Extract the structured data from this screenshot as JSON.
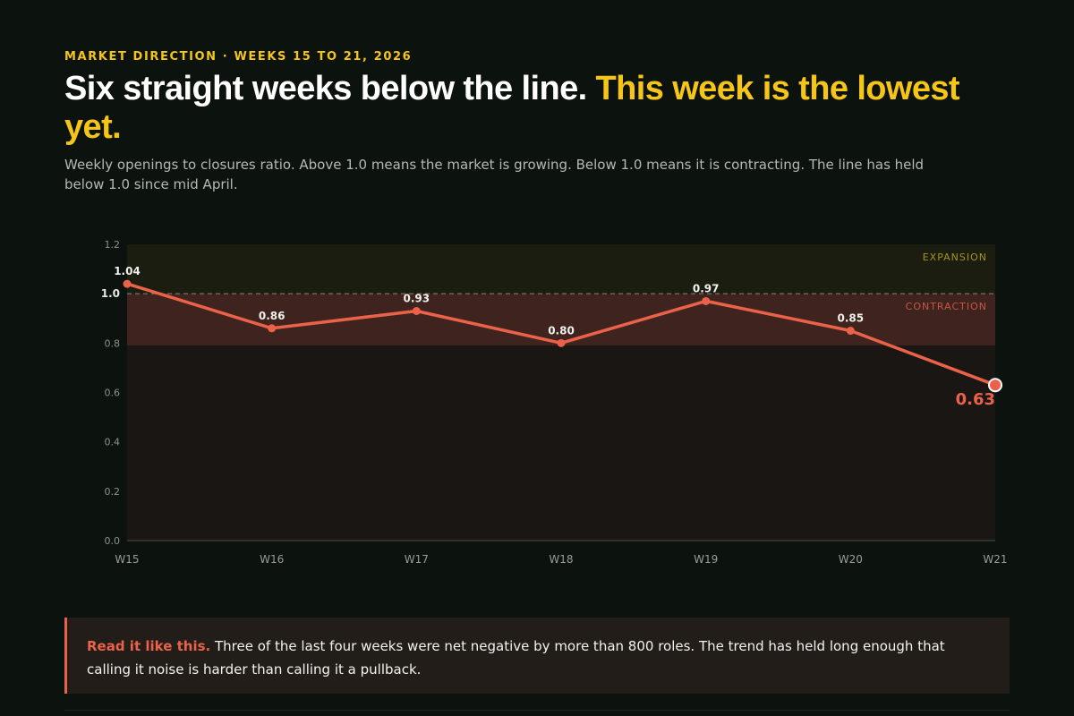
{
  "header": {
    "eyebrow": "MARKET DIRECTION · WEEKS 15 TO 21, 2026",
    "headline_main": "Six straight weeks below the line.",
    "headline_accent": "This week is the lowest yet.",
    "subtitle": "Weekly openings to closures ratio. Above 1.0 means the market is growing. Below 1.0 means it is contracting. The line has held below 1.0 since mid April."
  },
  "colors": {
    "background": "#0c120e",
    "accent_yellow": "#f5c518",
    "line_coral": "#ea6249",
    "expansion_band": "#1a1d10",
    "contraction_band": "#3e231e",
    "lower_band": "#191614"
  },
  "chart_data": {
    "type": "line",
    "categories": [
      "W15",
      "W16",
      "W17",
      "W18",
      "W19",
      "W20",
      "W21"
    ],
    "series": [
      {
        "values": [
          1.04,
          0.86,
          0.93,
          0.8,
          0.97,
          0.85,
          0.63
        ]
      }
    ],
    "data_labels": [
      "1.04",
      "0.86",
      "0.93",
      "0.80",
      "0.97",
      "0.85",
      "0.63"
    ],
    "highlight_index": 6,
    "ylim": [
      0,
      1.2
    ],
    "yticks": [
      "0.0",
      "0.2",
      "0.4",
      "0.6",
      "0.8",
      "1.0",
      "1.2"
    ],
    "ytick_values": [
      0,
      0.2,
      0.4,
      0.6,
      0.8,
      1.0,
      1.2
    ],
    "reference_line": 1.0,
    "zones": {
      "upper": "EXPANSION",
      "lower": "CONTRACTION"
    },
    "xlabel": "",
    "ylabel": "",
    "grid": false
  },
  "callout": {
    "lead": "Read it like this.",
    "text": "Three of the last four weeks were net negative by more than 800 roles. The trend has held long enough that calling it noise is harder than calling it a pullback."
  }
}
